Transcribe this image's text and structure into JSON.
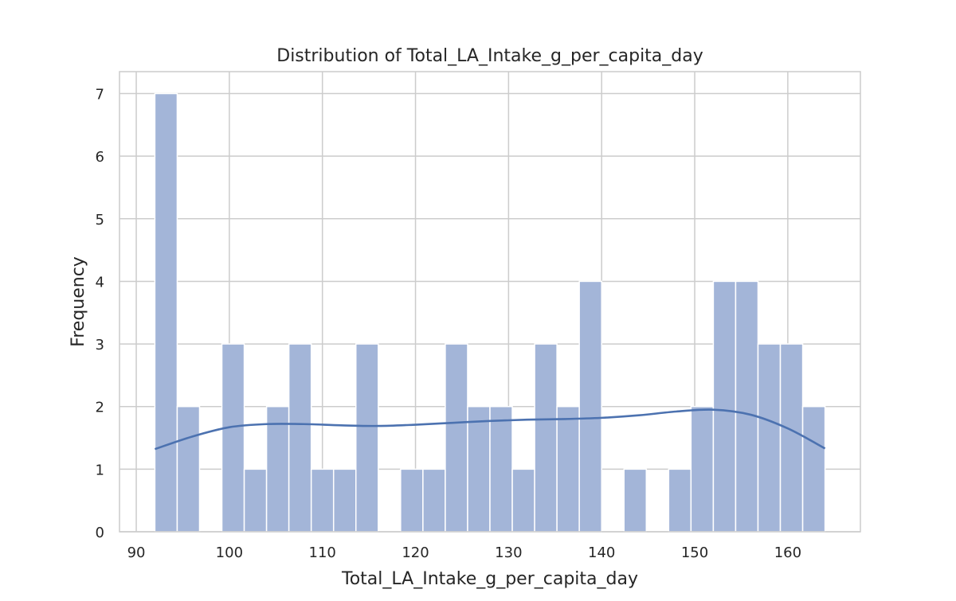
{
  "chart_data": {
    "type": "histogram",
    "title": "Distribution of Total_LA_Intake_g_per_capita_day",
    "xlabel": "Total_LA_Intake_g_per_capita_day",
    "ylabel": "Frequency",
    "xlim": [
      88.2,
      167.8
    ],
    "ylim": [
      0,
      7.35
    ],
    "x_ticks": [
      90,
      100,
      110,
      120,
      130,
      140,
      150,
      160
    ],
    "y_ticks": [
      0,
      1,
      2,
      3,
      4,
      5,
      6,
      7
    ],
    "grid": true,
    "bin_start": 92.0,
    "bin_width": 2.4,
    "counts": [
      7,
      2,
      0,
      3,
      1,
      2,
      3,
      1,
      1,
      3,
      0,
      1,
      1,
      3,
      2,
      2,
      1,
      3,
      2,
      4,
      0,
      1,
      0,
      1,
      2,
      4,
      4,
      3,
      3,
      2
    ],
    "kde_curve": {
      "x": [
        92,
        96,
        100,
        104,
        108,
        112,
        116,
        120,
        124,
        128,
        132,
        136,
        140,
        144,
        148,
        152,
        156,
        160,
        164
      ],
      "y": [
        1.32,
        1.52,
        1.67,
        1.72,
        1.72,
        1.7,
        1.69,
        1.71,
        1.74,
        1.77,
        1.79,
        1.8,
        1.82,
        1.86,
        1.92,
        1.95,
        1.87,
        1.65,
        1.33
      ]
    },
    "colors": {
      "bar_fill": "#a3b5d8",
      "bar_edge": "#ffffff",
      "kde_line": "#4c72b0",
      "grid": "#cccccc",
      "axes_edge": "#cccccc"
    }
  }
}
